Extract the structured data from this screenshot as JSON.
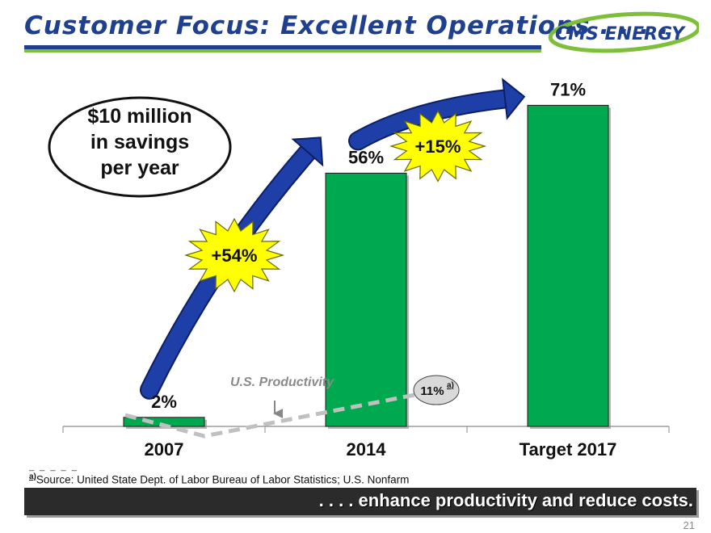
{
  "slide": {
    "title": "Customer Focus: Excellent Operations . . . .",
    "logo_text": "CMS ENERGY",
    "callout_lines": [
      "$10 million",
      "in savings",
      "per year"
    ],
    "footnote_marker": "a)",
    "footnote_text": "Source: United State Dept. of Labor Bureau of Labor Statistics; U.S. Nonfarm",
    "footnote_dash": "_ _ _ _ _",
    "banner_text": ". . . . enhance productivity and reduce costs.",
    "page_number": "21"
  },
  "colors": {
    "title_blue": "#1f3f8f",
    "accent_green": "#00a94f",
    "arrow_blue": "#1f3fa8",
    "burst_yellow": "#ffff00",
    "productivity_line": "#c0c0c0"
  },
  "chart_data": {
    "type": "bar",
    "categories": [
      "2007",
      "2014",
      "Target 2017"
    ],
    "values": [
      2,
      56,
      71
    ],
    "value_labels": [
      "2%",
      "56%",
      "71%"
    ],
    "ylim": [
      0,
      80
    ],
    "grid": false,
    "bursts": [
      {
        "label": "+54%",
        "from": "2007",
        "to": "2014"
      },
      {
        "label": "+15%",
        "from": "2014",
        "to": "Target 2017"
      }
    ],
    "productivity": {
      "label": "U.S. Productivity",
      "x": [
        "2007",
        "2014"
      ],
      "values": [
        0,
        11
      ],
      "end_label": "11%",
      "end_marker": "a)"
    }
  }
}
